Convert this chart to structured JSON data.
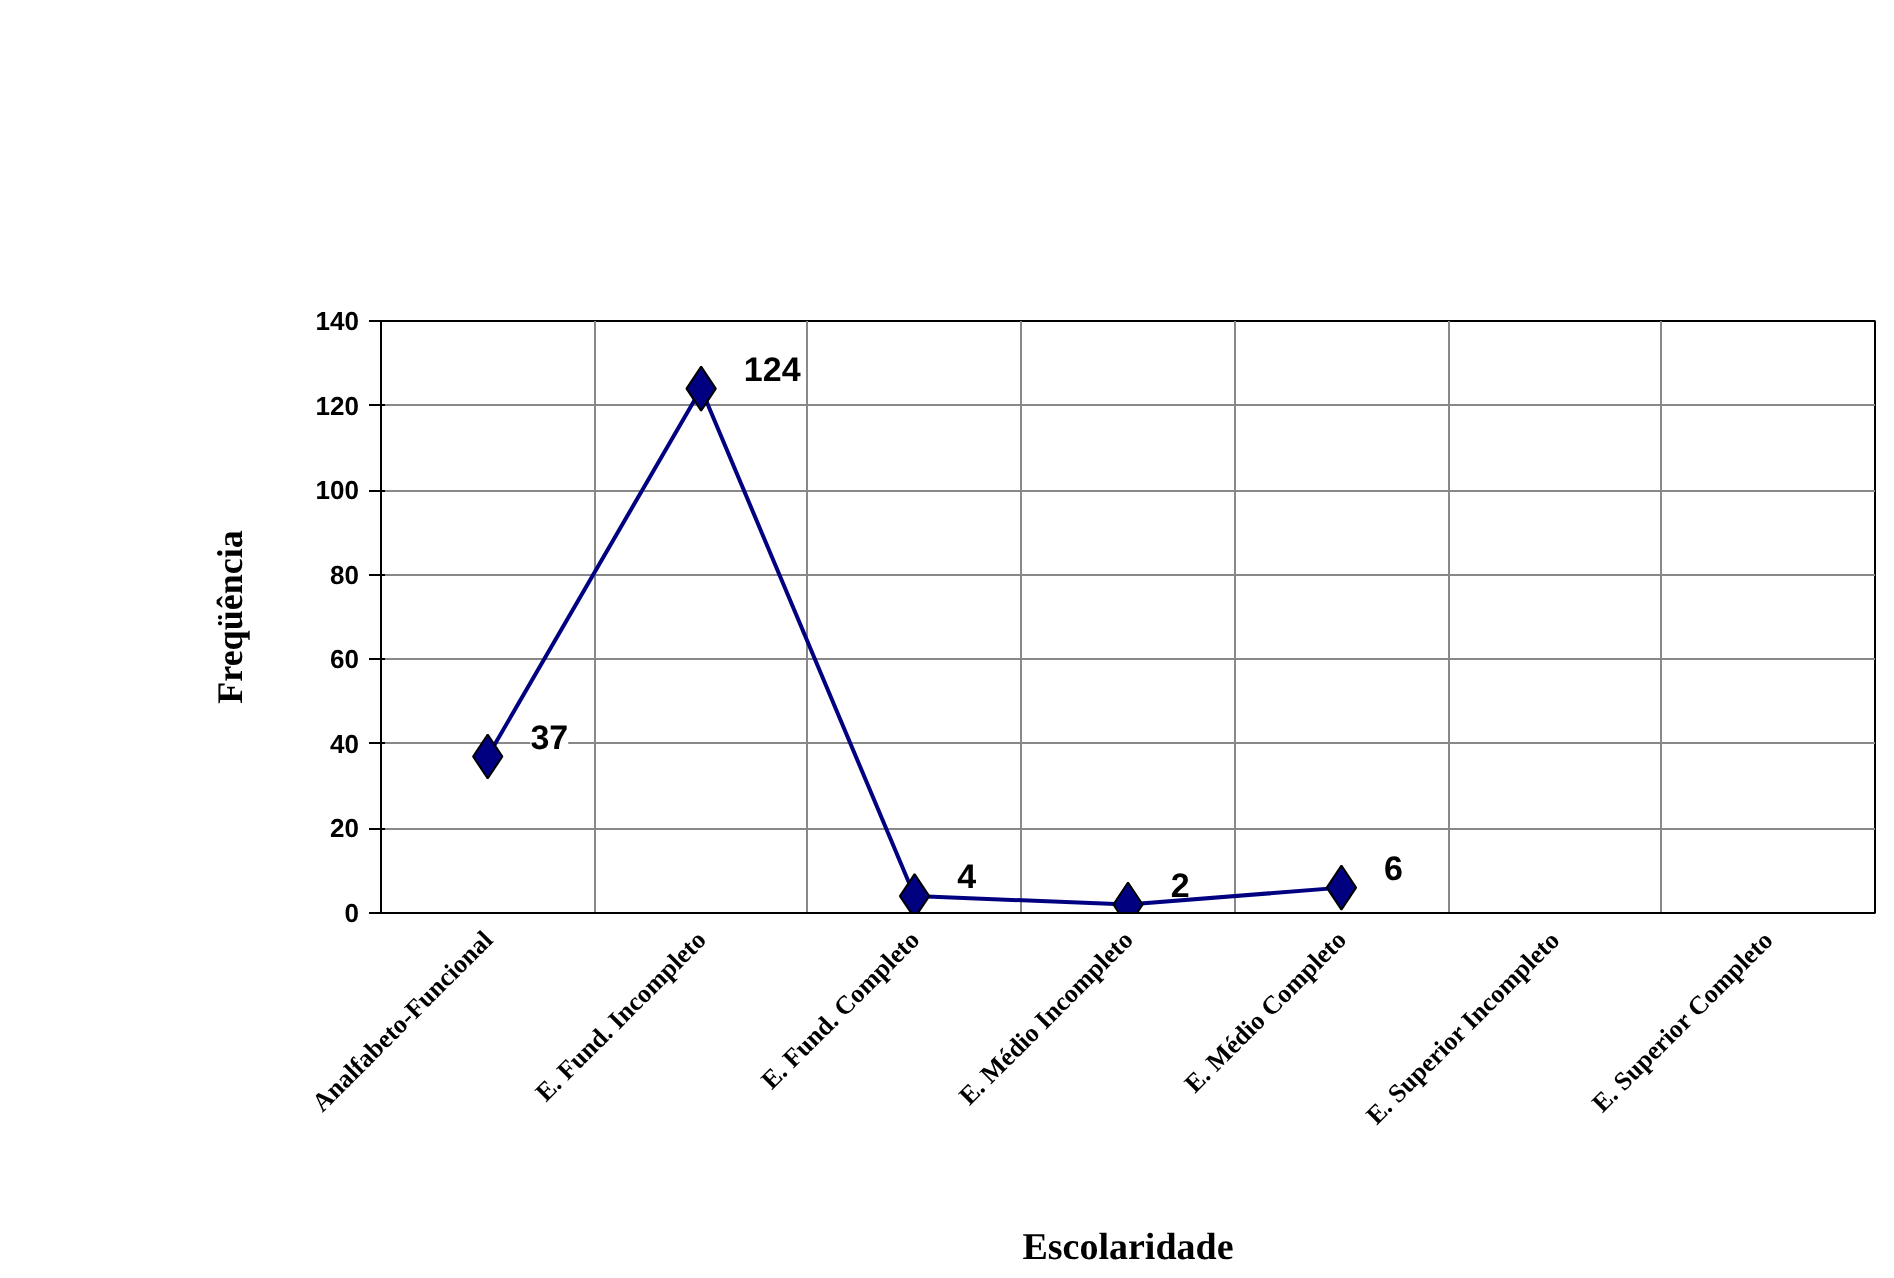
{
  "chart_data": {
    "type": "line",
    "xlabel": "Escolaridade",
    "ylabel": "Freqüência",
    "categories": [
      "Analfabeto-Funcional",
      "E. Fund. Incompleto",
      "E. Fund. Completo",
      "E. Médio Incompleto",
      "E. Médio Completo",
      "E. Superior Incompleto",
      "E. Superior Completo"
    ],
    "series": [
      {
        "color": "#000080",
        "values": [
          37,
          124,
          4,
          2,
          6,
          null,
          null
        ]
      }
    ],
    "ylim": [
      0,
      140
    ],
    "yticks": [
      0,
      20,
      40,
      60,
      80,
      100,
      120,
      140
    ],
    "grid": true,
    "marker": "diamond",
    "line_style": "solid",
    "data_labels": true
  }
}
